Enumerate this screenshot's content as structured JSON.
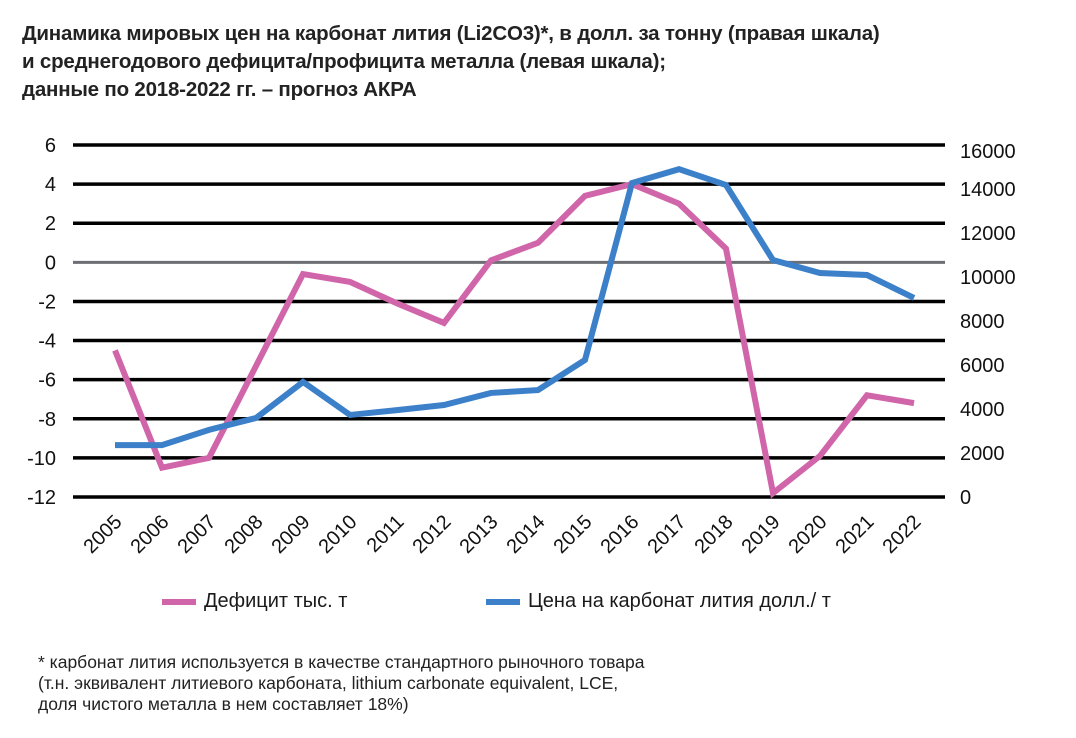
{
  "title_lines": [
    "Динамика мировых цен на карбонат лития (Li2CO3)*, в долл. за тонну (правая шкала)",
    "и среднегодового дефицита/профицита металла (левая шкала);",
    "данные по 2018-2022 гг. – прогноз АКРА"
  ],
  "footnote_lines": [
    "* карбонат лития используется в качестве стандартного рыночного товара",
    "(т.н. эквивалент литиевого карбоната, lithium carbonate equivalent, LCE,",
    "доля чистого металла в нем составляет 18%)"
  ],
  "chart_data": {
    "type": "line",
    "categories": [
      "2005",
      "2006",
      "2007",
      "2008",
      "2009",
      "2010",
      "2011",
      "2012",
      "2013",
      "2014",
      "2015",
      "2016",
      "2017",
      "2018",
      "2019",
      "2020",
      "2021",
      "2022"
    ],
    "series": [
      {
        "name": "Дефицит тыс. т",
        "axis": "left",
        "color": "#d066a9",
        "values": [
          -4.5,
          -10.5,
          -10.0,
          -5.3,
          -0.6,
          -1.0,
          -2.1,
          -3.1,
          0.1,
          1.0,
          3.4,
          4.0,
          3.0,
          0.7,
          -11.8,
          -9.9,
          -6.8,
          -7.2
        ]
      },
      {
        "name": "Цена на карбонат лития долл./ т",
        "axis": "right",
        "color": "#3b80c9",
        "values": [
          2360,
          2360,
          3050,
          3590,
          5230,
          3730,
          3950,
          4180,
          4730,
          4860,
          6230,
          14270,
          14900,
          14180,
          10770,
          10180,
          10090,
          9050
        ]
      }
    ],
    "left_axis": {
      "ylim": [
        -12,
        6
      ],
      "ticks": [
        "6",
        "4",
        "2",
        "0",
        "-2",
        "-4",
        "-6",
        "-8",
        "-10",
        "-12"
      ]
    },
    "right_axis": {
      "ylim": [
        0,
        16000
      ],
      "ticks": [
        "16000",
        "14000",
        "12000",
        "10000",
        "8000",
        "6000",
        "4000",
        "2000",
        "0"
      ]
    },
    "grid": true,
    "legend": "bottom"
  }
}
